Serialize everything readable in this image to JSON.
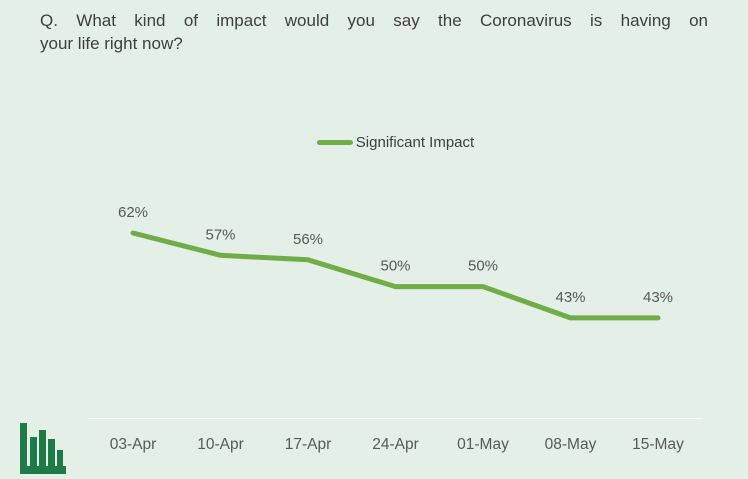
{
  "header": {
    "question_line1": "Q. What kind of impact would you say the Coronavirus is having on",
    "question_line2": "your life right now?"
  },
  "colors": {
    "background": "#e3efe7",
    "line": "#70ad47",
    "icon": "#1e7a46",
    "title_text": "#3f3f3f",
    "label_text": "#595959",
    "axis_line": "#f8fbf9"
  },
  "icons": {
    "bar_chart_icon": "bar-chart"
  },
  "chart_data": {
    "type": "line",
    "title": "Q. What kind of impact would you say the Coronavirus is having on your life right now?",
    "categories": [
      "03-Apr",
      "10-Apr",
      "17-Apr",
      "24-Apr",
      "01-May",
      "08-May",
      "15-May"
    ],
    "series": [
      {
        "name": "Significant Impact",
        "values": [
          62,
          57,
          56,
          50,
          50,
          43,
          43
        ]
      }
    ],
    "data_labels": [
      "62%",
      "57%",
      "56%",
      "50%",
      "50%",
      "43%",
      "43%"
    ],
    "xlabel": "",
    "ylabel": "",
    "ylim": [
      0,
      100
    ],
    "value_axis_visible": false,
    "grid": false,
    "legend_position": "top-center",
    "data_label_position": "above"
  }
}
